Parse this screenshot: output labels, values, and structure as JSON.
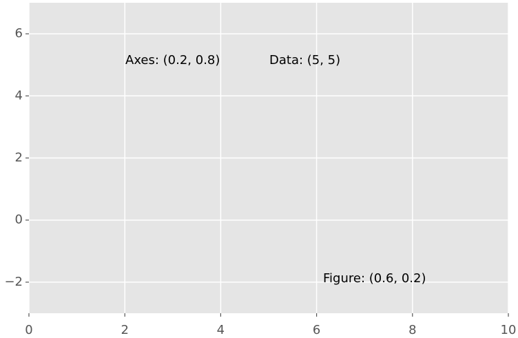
{
  "chart_data": {
    "type": "annotations",
    "annotations": [
      "Axes: (0.2, 0.8)",
      "Data: (5, 5)",
      "Figure: (0.6, 0.2)"
    ],
    "xlim": [
      0,
      10
    ],
    "xticks": [
      0,
      2,
      4,
      6,
      8,
      10
    ],
    "ylim": [
      -3,
      7
    ],
    "yticks": [
      {
        "value": -2,
        "label": "−2"
      },
      0,
      2,
      4,
      6
    ],
    "grid": true
  }
}
